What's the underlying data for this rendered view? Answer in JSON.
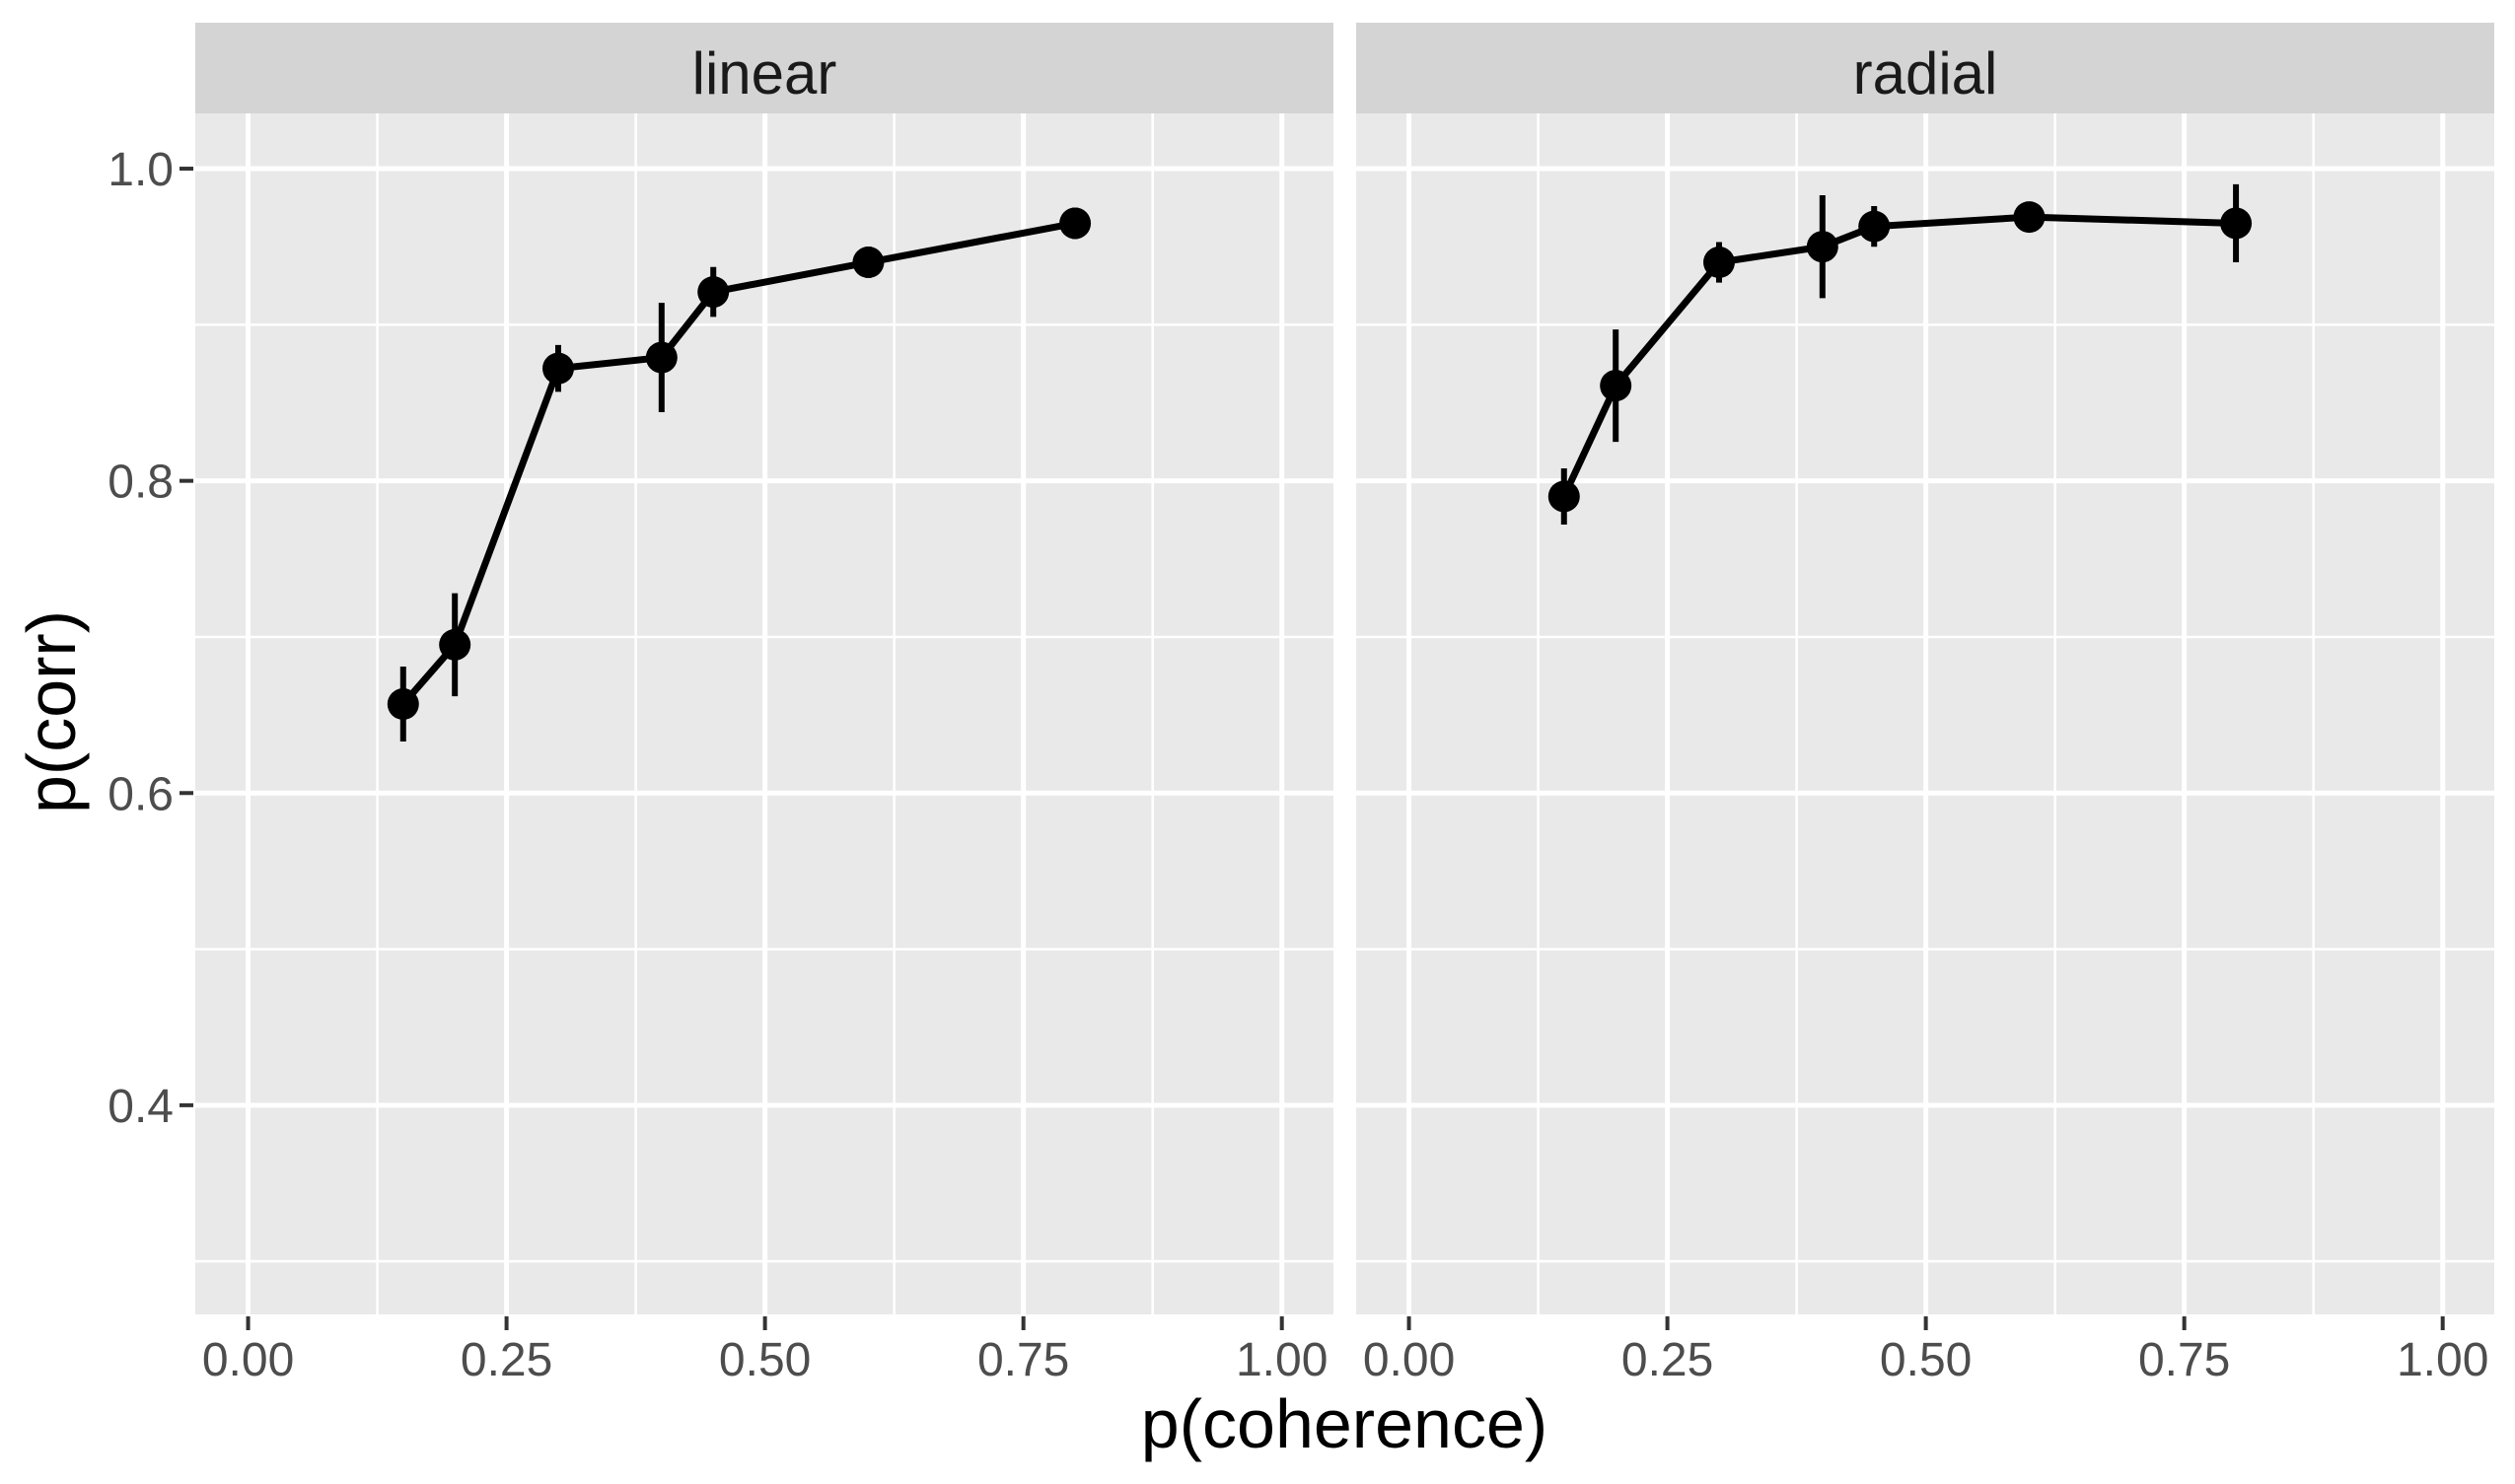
{
  "figure": {
    "xlabel": "p(coherence)",
    "ylabel": "p(corr)",
    "facets": [
      "linear",
      "radial"
    ]
  },
  "colors": {
    "background": "#ffffff",
    "panel_bg": "#e9e9e9",
    "strip_bg": "#d4d4d4",
    "gridline": "#ffffff",
    "tick_mark": "#333333",
    "tick_text": "#4d4d4d",
    "title_text": "#000000",
    "strip_text": "#1a1a1a",
    "series": "#000000"
  },
  "axes": {
    "x_major_ticks": [
      0,
      0.25,
      0.5,
      0.75,
      1.0
    ],
    "x_tick_labels": [
      "0.00",
      "0.25",
      "0.50",
      "0.75",
      "1.00"
    ],
    "x_minor_ticks": [
      0.125,
      0.375,
      0.625,
      0.875
    ],
    "y_major_ticks": [
      0.4,
      0.6,
      0.8,
      1.0
    ],
    "y_tick_labels": [
      "0.4",
      "0.6",
      "0.8",
      "1.0"
    ],
    "y_minor_ticks": [
      0.3,
      0.5,
      0.7,
      0.9
    ],
    "xlim": [
      -0.0511,
      1.0499
    ],
    "ylim": [
      0.266,
      1.0354
    ]
  },
  "chart_data": [
    {
      "type": "line",
      "facet": "linear",
      "title": "linear",
      "xlabel": "p(coherence)",
      "ylabel": "p(corr)",
      "marker": "filled-circle",
      "error_bars": true,
      "grid": true,
      "legend_position": "none",
      "xlim": [
        -0.0511,
        1.0499
      ],
      "ylim": [
        0.266,
        1.0354
      ],
      "x": [
        0.15,
        0.2,
        0.3,
        0.4,
        0.45,
        0.6,
        0.8
      ],
      "y": [
        0.657,
        0.695,
        0.872,
        0.879,
        0.921,
        0.94,
        0.965
      ],
      "y_se": [
        0.024,
        0.033,
        0.015,
        0.035,
        0.016,
        0.01,
        0.01
      ]
    },
    {
      "type": "line",
      "facet": "radial",
      "title": "radial",
      "xlabel": "p(coherence)",
      "ylabel": "p(corr)",
      "marker": "filled-circle",
      "error_bars": true,
      "grid": true,
      "legend_position": "none",
      "xlim": [
        -0.0511,
        1.0499
      ],
      "ylim": [
        0.266,
        1.0354
      ],
      "x": [
        0.15,
        0.2,
        0.3,
        0.4,
        0.45,
        0.6,
        0.8
      ],
      "y": [
        0.79,
        0.861,
        0.94,
        0.95,
        0.963,
        0.969,
        0.965
      ],
      "y_se": [
        0.018,
        0.036,
        0.013,
        0.033,
        0.013,
        0.008,
        0.025
      ]
    }
  ]
}
